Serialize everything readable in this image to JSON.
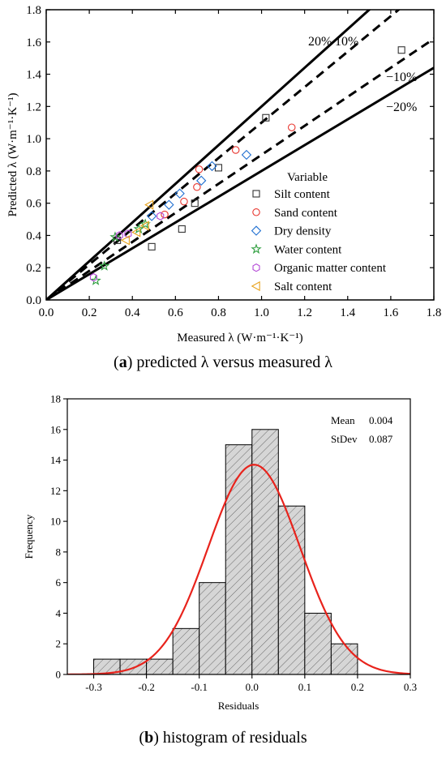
{
  "chart_data": [
    {
      "type": "scatter",
      "panel": "a",
      "xlabel": "Measured λ (W·m⁻¹·K⁻¹)",
      "ylabel": "Predicted λ (W·m⁻¹·K⁻¹)",
      "xlim": [
        0.0,
        1.8
      ],
      "ylim": [
        0.0,
        1.8
      ],
      "xticks": [
        "0.0",
        "0.2",
        "0.4",
        "0.6",
        "0.8",
        "1.0",
        "1.2",
        "1.4",
        "1.6",
        "1.8"
      ],
      "yticks": [
        "0.0",
        "0.2",
        "0.4",
        "0.6",
        "0.8",
        "1.0",
        "1.2",
        "1.4",
        "1.6",
        "1.8"
      ],
      "legend_title": "Variable",
      "legend_position": "bottom-right",
      "reference_lines": [
        {
          "label": "20%",
          "slope": 1.2,
          "style": "solid"
        },
        {
          "label": "10%",
          "slope": 1.1,
          "style": "dashed"
        },
        {
          "label": "−10%",
          "slope": 0.9,
          "style": "dashed"
        },
        {
          "label": "−20%",
          "slope": 0.8,
          "style": "solid"
        }
      ],
      "series": [
        {
          "name": "Silt content",
          "marker": "square",
          "color": "#333333",
          "points": [
            [
              0.33,
              0.37
            ],
            [
              0.49,
              0.33
            ],
            [
              0.63,
              0.44
            ],
            [
              0.69,
              0.6
            ],
            [
              0.8,
              0.82
            ],
            [
              1.02,
              1.13
            ],
            [
              1.65,
              1.55
            ]
          ]
        },
        {
          "name": "Sand content",
          "marker": "circle",
          "color": "#e8352e",
          "points": [
            [
              0.55,
              0.53
            ],
            [
              0.64,
              0.61
            ],
            [
              0.7,
              0.7
            ],
            [
              0.71,
              0.81
            ],
            [
              0.88,
              0.93
            ],
            [
              1.14,
              1.07
            ]
          ]
        },
        {
          "name": "Dry density",
          "marker": "diamond",
          "color": "#1f6fd1",
          "points": [
            [
              0.49,
              0.52
            ],
            [
              0.57,
              0.59
            ],
            [
              0.62,
              0.66
            ],
            [
              0.72,
              0.74
            ],
            [
              0.77,
              0.83
            ],
            [
              0.93,
              0.9
            ]
          ]
        },
        {
          "name": "Water content",
          "marker": "star",
          "color": "#2e9e3e",
          "points": [
            [
              0.23,
              0.12
            ],
            [
              0.27,
              0.21
            ],
            [
              0.32,
              0.39
            ],
            [
              0.43,
              0.44
            ],
            [
              0.46,
              0.47
            ]
          ]
        },
        {
          "name": "Organic matter content",
          "marker": "hexagon",
          "color": "#b448d6",
          "points": [
            [
              0.22,
              0.14
            ],
            [
              0.34,
              0.4
            ],
            [
              0.38,
              0.41
            ],
            [
              0.53,
              0.52
            ]
          ]
        },
        {
          "name": "Salt content",
          "marker": "triangle-left",
          "color": "#e8a21c",
          "points": [
            [
              0.37,
              0.37
            ],
            [
              0.42,
              0.42
            ],
            [
              0.46,
              0.46
            ],
            [
              0.48,
              0.59
            ]
          ]
        }
      ]
    },
    {
      "type": "histogram",
      "panel": "b",
      "xlabel": "Residuals",
      "ylabel": "Frequency",
      "xlim": [
        -0.35,
        0.3
      ],
      "ylim": [
        0,
        18
      ],
      "xticks": [
        "-0.3",
        "-0.2",
        "-0.1",
        "0.0",
        "0.1",
        "0.2",
        "0.3"
      ],
      "yticks": [
        "0",
        "2",
        "4",
        "6",
        "8",
        "10",
        "12",
        "14",
        "16",
        "18"
      ],
      "bin_edges": [
        -0.3,
        -0.25,
        -0.2,
        -0.15,
        -0.1,
        -0.05,
        0.0,
        0.05,
        0.1,
        0.15,
        0.2
      ],
      "counts": [
        1,
        1,
        1,
        3,
        6,
        15,
        16,
        11,
        4,
        2
      ],
      "fit": {
        "type": "normal",
        "mean": 0.004,
        "stdev": 0.087,
        "peak": 13.7,
        "color": "#e8231c"
      },
      "stats": {
        "mean_label": "Mean",
        "mean_value": "0.004",
        "stdev_label": "StDev",
        "stdev_value": "0.087"
      }
    }
  ],
  "captions": {
    "a": {
      "tag": "a",
      "text": " predicted λ versus measured λ",
      "open": "(",
      "close": ")"
    },
    "b": {
      "tag": "b",
      "text": " histogram of residuals",
      "open": "(",
      "close": ")"
    }
  }
}
